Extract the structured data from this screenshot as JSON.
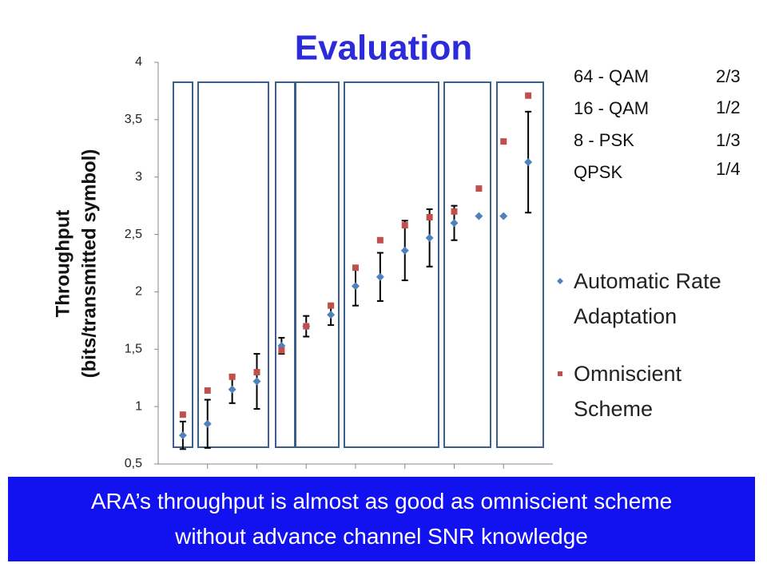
{
  "chart_data": {
    "type": "scatter",
    "title": "Evaluation",
    "y_label": [
      "Throughput",
      "(bits/transmitted symbol)"
    ],
    "x": [
      1,
      2,
      3,
      4,
      5,
      6,
      7,
      8,
      9,
      10,
      11,
      12,
      13,
      14,
      15
    ],
    "xlim": [
      0,
      16
    ],
    "ylim": [
      0.5,
      4
    ],
    "yticks": [
      {
        "value": 0.5,
        "label": "0,5"
      },
      1,
      {
        "value": 1.5,
        "label": "1,5"
      },
      2,
      {
        "value": 2.5,
        "label": "2,5"
      },
      3,
      {
        "value": 3.5,
        "label": "3,5"
      },
      4
    ],
    "legend": "right",
    "series": [
      {
        "name": "Automatic Rate Adaptation",
        "color": "#4f81bd",
        "marker": "diamond",
        "values": [
          0.75,
          0.85,
          1.15,
          1.22,
          1.53,
          1.7,
          1.8,
          2.05,
          2.13,
          2.36,
          2.47,
          2.6,
          2.66,
          2.66,
          3.13
        ],
        "errors": [
          0.12,
          0.21,
          0.12,
          0.24,
          0.07,
          0.09,
          0.09,
          0.17,
          0.21,
          0.26,
          0.25,
          0.15,
          null,
          null,
          0.44
        ]
      },
      {
        "name": "Omniscient Scheme",
        "color": "#c0504d",
        "marker": "square",
        "values": [
          0.93,
          1.14,
          1.26,
          1.3,
          1.49,
          1.7,
          1.88,
          2.21,
          2.45,
          2.58,
          2.65,
          2.7,
          2.9,
          3.31,
          3.71
        ]
      }
    ],
    "annotations": {
      "modulations": [
        "64 - QAM",
        "16 - QAM",
        "8 - PSK",
        "QPSK"
      ],
      "rates": [
        "2/3",
        "1/2",
        "1/3",
        "1/4"
      ]
    }
  },
  "banner": {
    "text": "ARA’s throughput is almost as good as omniscient scheme without advance channel SNR knowledge"
  }
}
